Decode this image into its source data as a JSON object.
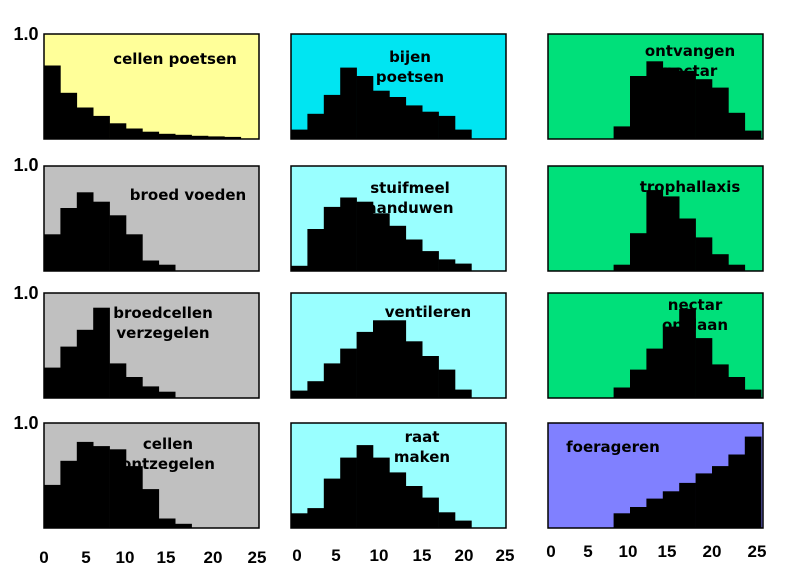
{
  "colors": {
    "yellow": "#ffff99",
    "cyan_bright": "#00e5f2",
    "cyan_light": "#99ffff",
    "green": "#00e07a",
    "gray": "#c0c0c0",
    "purple": "#8080ff",
    "bars": "#000000"
  },
  "chart_data": [
    {
      "type": "bar",
      "title": [
        "cellen poetsen"
      ],
      "y_tick_label": "1.0",
      "color": "yellow",
      "ylim": [
        0,
        1.0
      ],
      "x": [
        0,
        2,
        4,
        6,
        8,
        10,
        12,
        14,
        16,
        18,
        20,
        22,
        24
      ],
      "values": [
        0.7,
        0.44,
        0.3,
        0.22,
        0.15,
        0.1,
        0.07,
        0.05,
        0.04,
        0.03,
        0.025,
        0.02,
        0.0
      ]
    },
    {
      "type": "bar",
      "title": [
        "bijen",
        "poetsen"
      ],
      "color": "cyan_bright",
      "ylim": [
        0,
        1.0
      ],
      "x": [
        0,
        2,
        4,
        6,
        8,
        10,
        12,
        14,
        16,
        18,
        20,
        22,
        24
      ],
      "values": [
        0.09,
        0.24,
        0.42,
        0.68,
        0.6,
        0.46,
        0.4,
        0.32,
        0.26,
        0.22,
        0.09,
        0.0,
        0.0
      ]
    },
    {
      "type": "bar",
      "title": [
        "ontvangen",
        "nectar"
      ],
      "color": "green",
      "ylim": [
        0,
        1.0
      ],
      "x": [
        0,
        2,
        4,
        6,
        8,
        10,
        12,
        14,
        16,
        18,
        20,
        22,
        24
      ],
      "values": [
        0.0,
        0.0,
        0.0,
        0.0,
        0.12,
        0.6,
        0.74,
        0.68,
        0.65,
        0.57,
        0.49,
        0.25,
        0.08
      ]
    },
    {
      "type": "bar",
      "title": [
        "broed voeden"
      ],
      "y_tick_label": "1.0",
      "color": "gray",
      "ylim": [
        0,
        1.0
      ],
      "x": [
        0,
        2,
        4,
        6,
        8,
        10,
        12,
        14,
        16,
        18,
        20,
        22,
        24
      ],
      "values": [
        0.35,
        0.6,
        0.75,
        0.66,
        0.53,
        0.35,
        0.1,
        0.06,
        0.0,
        0.0,
        0.0,
        0.0,
        0.0
      ]
    },
    {
      "type": "bar",
      "title": [
        "stuifmeel",
        "aanduwen"
      ],
      "color": "cyan_light",
      "ylim": [
        0,
        1.0
      ],
      "x": [
        0,
        2,
        4,
        6,
        8,
        10,
        12,
        14,
        16,
        18,
        20,
        22,
        24
      ],
      "values": [
        0.05,
        0.4,
        0.61,
        0.7,
        0.66,
        0.55,
        0.43,
        0.3,
        0.19,
        0.11,
        0.07,
        0.0,
        0.0
      ]
    },
    {
      "type": "bar",
      "title": [
        "trophallaxis"
      ],
      "color": "green",
      "ylim": [
        0,
        1.0
      ],
      "x": [
        0,
        2,
        4,
        6,
        8,
        10,
        12,
        14,
        16,
        18,
        20,
        22,
        24
      ],
      "values": [
        0.0,
        0.0,
        0.0,
        0.0,
        0.06,
        0.36,
        0.77,
        0.71,
        0.5,
        0.32,
        0.16,
        0.06,
        0.0
      ]
    },
    {
      "type": "bar",
      "title": [
        "broedcellen",
        "verzegelen"
      ],
      "y_tick_label": "1.0",
      "color": "gray",
      "ylim": [
        0,
        1.0
      ],
      "x": [
        0,
        2,
        4,
        6,
        8,
        10,
        12,
        14,
        16,
        18,
        20,
        22,
        24
      ],
      "values": [
        0.29,
        0.49,
        0.65,
        0.86,
        0.33,
        0.2,
        0.11,
        0.06,
        0.0,
        0.0,
        0.0,
        0.0,
        0.0
      ]
    },
    {
      "type": "bar",
      "title": [
        "ventileren"
      ],
      "color": "cyan_light",
      "ylim": [
        0,
        1.0
      ],
      "x": [
        0,
        2,
        4,
        6,
        8,
        10,
        12,
        14,
        16,
        18,
        20,
        22,
        24
      ],
      "values": [
        0.07,
        0.16,
        0.33,
        0.47,
        0.63,
        0.74,
        0.74,
        0.54,
        0.4,
        0.27,
        0.08,
        0.0,
        0.0
      ]
    },
    {
      "type": "bar",
      "title": [
        "nectar",
        "opslaan"
      ],
      "color": "green",
      "ylim": [
        0,
        1.0
      ],
      "x": [
        0,
        2,
        4,
        6,
        8,
        10,
        12,
        14,
        16,
        18,
        20,
        22,
        24
      ],
      "values": [
        0.0,
        0.0,
        0.0,
        0.0,
        0.1,
        0.27,
        0.47,
        0.68,
        0.85,
        0.57,
        0.32,
        0.2,
        0.08
      ]
    },
    {
      "type": "bar",
      "title": [
        "cellen",
        "ontzegelen"
      ],
      "y_tick_label": "1.0",
      "color": "gray",
      "ylim": [
        0,
        1.0
      ],
      "x": [
        0,
        2,
        4,
        6,
        8,
        10,
        12,
        14,
        16,
        18,
        20,
        22,
        24
      ],
      "values": [
        0.41,
        0.64,
        0.82,
        0.78,
        0.75,
        0.59,
        0.37,
        0.09,
        0.04,
        0.0,
        0.0,
        0.0,
        0.0
      ]
    },
    {
      "type": "bar",
      "title": [
        "raat",
        "maken"
      ],
      "color": "cyan_light",
      "ylim": [
        0,
        1.0
      ],
      "x": [
        0,
        2,
        4,
        6,
        8,
        10,
        12,
        14,
        16,
        18,
        20,
        22,
        24
      ],
      "values": [
        0.14,
        0.19,
        0.47,
        0.67,
        0.79,
        0.67,
        0.53,
        0.4,
        0.29,
        0.15,
        0.07,
        0.0,
        0.0
      ]
    },
    {
      "type": "bar",
      "title": [
        "foerageren"
      ],
      "color": "purple",
      "ylim": [
        0,
        1.0
      ],
      "x": [
        0,
        2,
        4,
        6,
        8,
        10,
        12,
        14,
        16,
        18,
        20,
        22,
        24
      ],
      "values": [
        0.0,
        0.0,
        0.0,
        0.0,
        0.14,
        0.2,
        0.28,
        0.35,
        0.43,
        0.52,
        0.59,
        0.7,
        0.87
      ]
    }
  ],
  "x_axis_ticks": [
    "0",
    "5",
    "10",
    "15",
    "20",
    "25"
  ]
}
